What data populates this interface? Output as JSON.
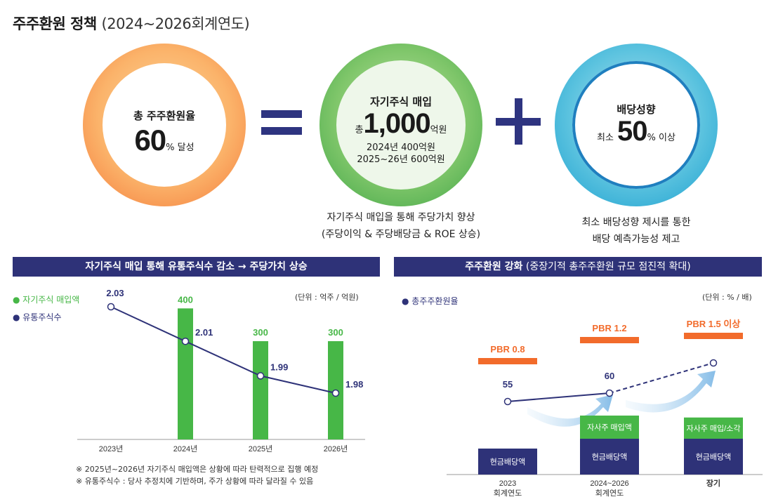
{
  "header": {
    "title": "주주환원 정책",
    "subtitle": "(2024~2026회계연도)"
  },
  "circles": {
    "total": {
      "label": "총 주주환원율",
      "value": "60",
      "suffix": "% 달성"
    },
    "buyback": {
      "label": "자기주식 매입",
      "prefix": "총",
      "value": "1,000",
      "suffix": "억원",
      "line1": "2024년 400억원",
      "line2": "2025~26년 600억원"
    },
    "dividend": {
      "label": "배당성향",
      "prefix": "최소",
      "value": "50",
      "suffix": "% 이상"
    }
  },
  "captions": {
    "buyback": [
      "자기주식 매입을 통해 주당가치 향상",
      "(주당이익 & 주당배당금 & ROE 상승)"
    ],
    "dividend": [
      "최소 배당성향 제시를 통한",
      "배당 예측가능성 제고"
    ]
  },
  "colors": {
    "navy": "#2e3278",
    "green": "#47b747",
    "orange": "#f26b2b"
  },
  "left_panel": {
    "banner": "자기주식 매입 통해 유통주식수 감소 → 주당가치 상승",
    "legend": [
      "자기주식 매입액",
      "유통주식수"
    ],
    "unit": "(단위 : 억주 / 억원)",
    "notes": [
      "※ 2025년~2026년 자기주식 매입액은 상황에 따라 탄력적으로 집행 예정",
      "※ 유통주식수 : 당사 추정치에 기반하며, 주가 상황에 따라 달라질 수 있음"
    ]
  },
  "right_panel": {
    "banner_bold": "주주환원 강화",
    "banner_rest": " (중장기적 총주주환원 규모 점진적 확대)",
    "legend": [
      "총주주환원율"
    ],
    "unit": "(단위 : % / 배)"
  },
  "chart_data": [
    {
      "type": "bar",
      "title": "자기주식 매입 통해 유통주식수 감소 → 주당가치 상승",
      "categories": [
        "2023년",
        "2024년",
        "2025년",
        "2026년"
      ],
      "series": [
        {
          "name": "자기주식 매입액",
          "type": "bar",
          "values": [
            null,
            400,
            300,
            300
          ],
          "labels": [
            "",
            "400",
            "300",
            "300"
          ]
        },
        {
          "name": "유통주식수",
          "type": "line",
          "values": [
            2.03,
            2.01,
            1.99,
            1.98
          ],
          "labels": [
            "2.03",
            "2.01",
            "1.99",
            "1.98"
          ]
        }
      ],
      "bar_ylim": [
        0,
        420
      ],
      "line_ylim": [
        1.97,
        2.04
      ]
    },
    {
      "type": "bar",
      "title": "주주환원 강화",
      "categories": [
        "2023\n회계연도",
        "2024~2026\n회계연도",
        "장기"
      ],
      "category_lines": [
        [
          "2023",
          "회계연도"
        ],
        [
          "2024~2026",
          "회계연도"
        ],
        [
          "장기"
        ]
      ],
      "stacks": [
        {
          "name": "현금배당액",
          "values": [
            1,
            1,
            1
          ],
          "labels": [
            "현금배당액",
            "현금배당액",
            "현금배당액"
          ]
        },
        {
          "name": "자사주",
          "values": [
            0,
            0.6,
            0.55
          ],
          "labels": [
            "",
            "자사주 매입액",
            "자사주 매입/소각"
          ]
        }
      ],
      "series": [
        {
          "name": "총주주환원율",
          "values": [
            55,
            60,
            null
          ],
          "labels": [
            "55",
            "60",
            ""
          ]
        }
      ],
      "pbr": [
        "PBR 0.8",
        "PBR 1.2",
        "PBR 1.5 이상"
      ]
    }
  ]
}
